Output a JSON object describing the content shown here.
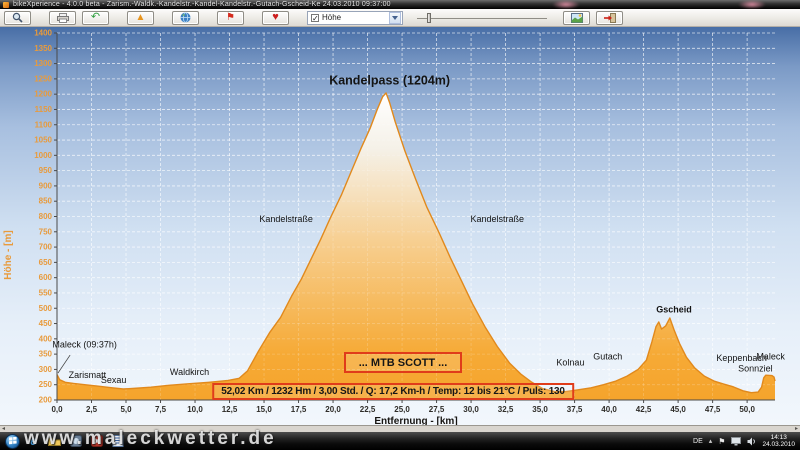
{
  "window": {
    "title": "bikeXperience - 4.0.0 beta - Zarism.-Waldk.-Kandelstr.-Kandel-Kandelstr.-Gutach-Gscheid-Ke  24.03.2010 09:37:00"
  },
  "toolbar": {
    "buttons": [
      {
        "name": "zoom-tool"
      },
      {
        "name": "print"
      },
      {
        "name": "undo"
      },
      {
        "name": "profile-view"
      },
      {
        "name": "globe-view"
      },
      {
        "name": "flag-marker"
      },
      {
        "name": "heart-rate"
      }
    ],
    "series_select": {
      "checked": true,
      "checkmark": "✓",
      "label": "Höhe"
    },
    "right_buttons": [
      {
        "name": "map-view"
      },
      {
        "name": "export"
      }
    ],
    "glyphs": {
      "undo": "↶",
      "profile": "▲",
      "flag": "⚑",
      "heart": "♥"
    }
  },
  "chart_data": {
    "type": "area",
    "xlabel": "Entfernung - [km]",
    "ylabel": "Höhe - [m]",
    "xlim": [
      0,
      52.02
    ],
    "ylim": [
      200,
      1400
    ],
    "xtick_step": 2.5,
    "xtick_max": 50,
    "ytick_step": 50,
    "grid": "dashed-white",
    "profile": [
      [
        0,
        283
      ],
      [
        0.2,
        266
      ],
      [
        0.6,
        258
      ],
      [
        1.2,
        254
      ],
      [
        2.0,
        250
      ],
      [
        3.0,
        245
      ],
      [
        4.0,
        240
      ],
      [
        4.8,
        236
      ],
      [
        5.6,
        238
      ],
      [
        6.8,
        242
      ],
      [
        8.1,
        248
      ],
      [
        9.5,
        253
      ],
      [
        11.0,
        258
      ],
      [
        12.4,
        264
      ],
      [
        13.2,
        271
      ],
      [
        13.8,
        295
      ],
      [
        14.6,
        360
      ],
      [
        15.4,
        420
      ],
      [
        16.2,
        470
      ],
      [
        17.0,
        540
      ],
      [
        17.7,
        595
      ],
      [
        18.4,
        660
      ],
      [
        19.1,
        725
      ],
      [
        19.8,
        795
      ],
      [
        20.6,
        870
      ],
      [
        21.3,
        945
      ],
      [
        22.0,
        1020
      ],
      [
        22.7,
        1090
      ],
      [
        23.2,
        1150
      ],
      [
        23.6,
        1192
      ],
      [
        23.84,
        1204
      ],
      [
        24.1,
        1172
      ],
      [
        24.5,
        1110
      ],
      [
        25.2,
        1015
      ],
      [
        26.0,
        920
      ],
      [
        26.8,
        830
      ],
      [
        27.7,
        745
      ],
      [
        28.5,
        665
      ],
      [
        29.3,
        590
      ],
      [
        30.1,
        515
      ],
      [
        31.0,
        440
      ],
      [
        31.9,
        375
      ],
      [
        32.8,
        320
      ],
      [
        33.6,
        285
      ],
      [
        34.4,
        258
      ],
      [
        35.2,
        237
      ],
      [
        36.0,
        228
      ],
      [
        36.8,
        227
      ],
      [
        37.7,
        233
      ],
      [
        38.7,
        240
      ],
      [
        39.6,
        250
      ],
      [
        40.5,
        262
      ],
      [
        41.3,
        278
      ],
      [
        42.1,
        300
      ],
      [
        42.7,
        330
      ],
      [
        43.1,
        390
      ],
      [
        43.4,
        440
      ],
      [
        43.6,
        455
      ],
      [
        43.8,
        432
      ],
      [
        44.1,
        442
      ],
      [
        44.4,
        468
      ],
      [
        44.7,
        430
      ],
      [
        45.1,
        385
      ],
      [
        45.6,
        340
      ],
      [
        46.2,
        305
      ],
      [
        46.9,
        278
      ],
      [
        47.6,
        262
      ],
      [
        48.3,
        252
      ],
      [
        49.0,
        243
      ],
      [
        49.7,
        230
      ],
      [
        50.3,
        224
      ],
      [
        50.8,
        226
      ],
      [
        51.05,
        242
      ],
      [
        51.2,
        272
      ],
      [
        51.35,
        281
      ],
      [
        51.8,
        280
      ],
      [
        51.95,
        275
      ],
      [
        52.02,
        262
      ]
    ],
    "annotations": [
      {
        "text": "Kandelpass (1204m)",
        "x": 24.1,
        "y": 1232,
        "bold": true,
        "size": 12.5
      },
      {
        "text": "Kandelstraße",
        "x": 16.6,
        "y": 782
      },
      {
        "text": "Kandelstraße",
        "x": 31.9,
        "y": 782
      },
      {
        "text": "Maleck (09:37h)",
        "x": 2.0,
        "y": 372,
        "leader": [
          [
            0.95,
            347
          ],
          [
            0.07,
            288
          ]
        ]
      },
      {
        "text": "Zarismatt",
        "x": 2.2,
        "y": 272
      },
      {
        "text": "Sexau",
        "x": 4.1,
        "y": 256
      },
      {
        "text": "Waldkirch",
        "x": 9.6,
        "y": 282
      },
      {
        "text": "Kolnau",
        "x": 37.2,
        "y": 312
      },
      {
        "text": "Gutach",
        "x": 39.9,
        "y": 332
      },
      {
        "text": "Gscheid",
        "x": 44.7,
        "y": 486,
        "bold": true
      },
      {
        "text": "Keppenbach",
        "x": 49.6,
        "y": 327
      },
      {
        "text": "Sonnziel",
        "x": 50.6,
        "y": 294
      },
      {
        "text": "Maleck",
        "x": 51.7,
        "y": 333
      }
    ],
    "boxes": [
      {
        "text": "... MTB SCOTT ..."
      },
      {
        "text": "52,02 Km  /  1232 Hm  /  3,00 Std.  /  Q: 17,2 Km-h  /  Temp: 12 bis 21°C  /  Puls: 130"
      }
    ],
    "colors": {
      "area_top": "#ffffff",
      "area_bottom": "#f5a42c",
      "line": "#e1891c",
      "ytick_label": "#e89b3d",
      "xtick_label": "#2e2c28",
      "box_border": "#e03c1a"
    }
  },
  "taskbar": {
    "watermark": "www.maleckwetter.de",
    "tray": {
      "language": "DE",
      "up_arrow": "▴",
      "flag": "⚑",
      "time": "14:13",
      "date": "24.03.2010"
    }
  },
  "hstrip": {
    "left_arrow": "◂",
    "right_arrow": "▸"
  }
}
